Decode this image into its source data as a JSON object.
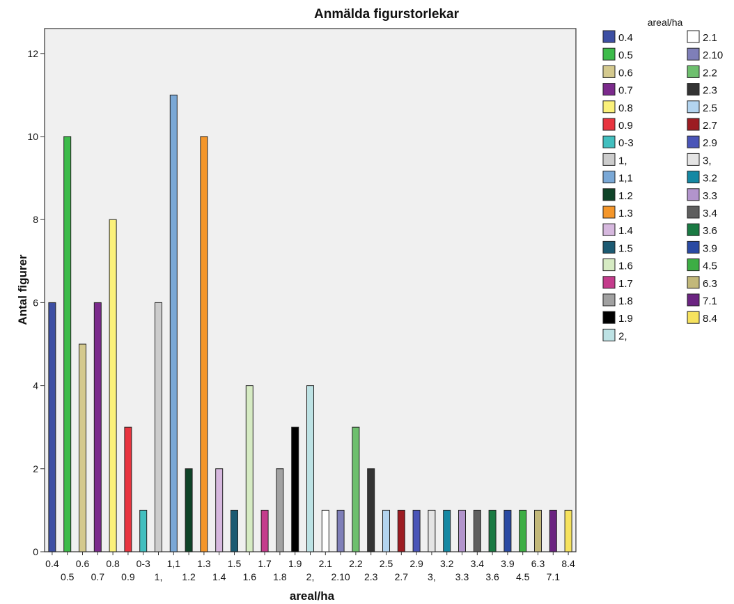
{
  "chart_data": {
    "type": "bar",
    "title": "Anmälda figurstorlekar",
    "xlabel": "areal/ha",
    "ylabel": "Antal figurer",
    "ylim": [
      0,
      12.6
    ],
    "yticks": [
      0,
      2,
      4,
      6,
      8,
      10,
      12
    ],
    "grid": false,
    "legend": {
      "title": "areal/ha",
      "placement": "right",
      "columns": 2
    },
    "categories": [
      "0.4",
      "0.5",
      "0.6",
      "0.7",
      "0.8",
      "0.9",
      "0-3",
      "1,",
      "1,1",
      "1.2",
      "1.3",
      "1.4",
      "1.5",
      "1.6",
      "1.7",
      "1.8",
      "1.9",
      "2,",
      "2.1",
      "2.10",
      "2.2",
      "2.3",
      "2.5",
      "2.7",
      "2.9",
      "3,",
      "3.2",
      "3.3",
      "3.4",
      "3.6",
      "3.9",
      "4.5",
      "6.3",
      "7.1",
      "8.4"
    ],
    "values": [
      6,
      10,
      5,
      6,
      8,
      3,
      1,
      6,
      11,
      2,
      10,
      2,
      1,
      4,
      1,
      2,
      3,
      4,
      1,
      1,
      3,
      2,
      1,
      1,
      1,
      1,
      1,
      1,
      1,
      1,
      1,
      1,
      1,
      1,
      1
    ],
    "colors": [
      "#3d4fa3",
      "#3dbb4a",
      "#d4c98e",
      "#7b2a8c",
      "#fbf17a",
      "#e8343f",
      "#42bfbf",
      "#cccccc",
      "#7aa8d6",
      "#0f4428",
      "#f4962a",
      "#d6b8de",
      "#1c5a72",
      "#d6ebc3",
      "#c43c8c",
      "#a1a1a1",
      "#000000",
      "#bde2e4",
      "#ffffff",
      "#7f7fb8",
      "#6ebf6e",
      "#333333",
      "#b3d4ef",
      "#9c1c22",
      "#4a55b8",
      "#e4e4e4",
      "#1588a3",
      "#b294cc",
      "#5e5e5e",
      "#1a7a43",
      "#2a4aa3",
      "#3dae44",
      "#c2b87a",
      "#6b2481",
      "#f6e25e"
    ]
  }
}
